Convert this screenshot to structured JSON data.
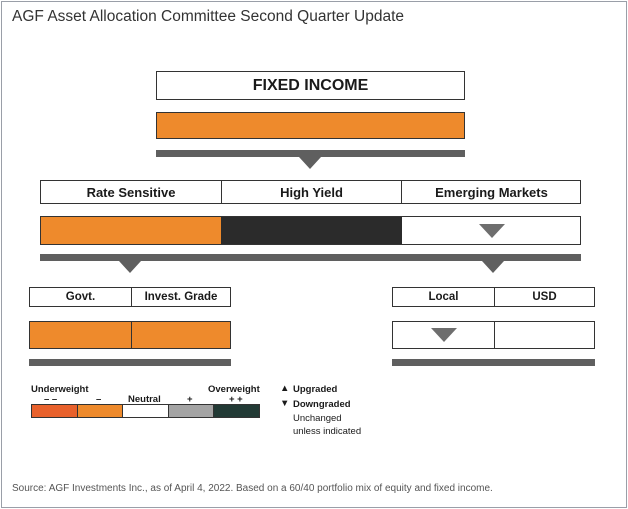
{
  "title": "AGF Asset Allocation Committee Second Quarter Update",
  "fixed_income": {
    "label": "FIXED INCOME"
  },
  "categories": {
    "rate_sensitive": "Rate Sensitive",
    "high_yield": "High Yield",
    "emerging_markets": "Emerging Markets"
  },
  "rate_sensitive_sub": {
    "govt": "Govt.",
    "invest_grade": "Invest. Grade"
  },
  "emerging_sub": {
    "local": "Local",
    "usd": "USD"
  },
  "legend": {
    "underweight": "Underweight",
    "overweight": "Overweight",
    "neutral": "Neutral",
    "minus_minus": "– –",
    "minus": "–",
    "plus": "+",
    "plus_plus": "+ +",
    "swatches": [
      "#e8612c",
      "#ee8a2c",
      "#ffffff",
      "#a4a4a4",
      "#223a35"
    ]
  },
  "key": {
    "up_symbol": "▲",
    "upgraded": "Upgraded",
    "down_symbol": "▼",
    "downgraded": "Downgraded",
    "unchanged_1": "Unchanged",
    "unchanged_2": "unless indicated"
  },
  "source": "Source: AGF Investments Inc., as of April 4, 2022. Based on a 60/40 portfolio mix of equity and fixed income.",
  "colors": {
    "orange": "#ee8a2c",
    "dark": "#2b2b2b",
    "gray_bar": "#5f5f5f"
  },
  "ratings": {
    "fixed_income": "minus",
    "rate_sensitive": "minus",
    "high_yield": "overweight",
    "emerging_markets": "neutral, downgraded",
    "govt": "minus",
    "invest_grade": "minus",
    "local": "neutral, downgraded",
    "usd": "neutral"
  }
}
